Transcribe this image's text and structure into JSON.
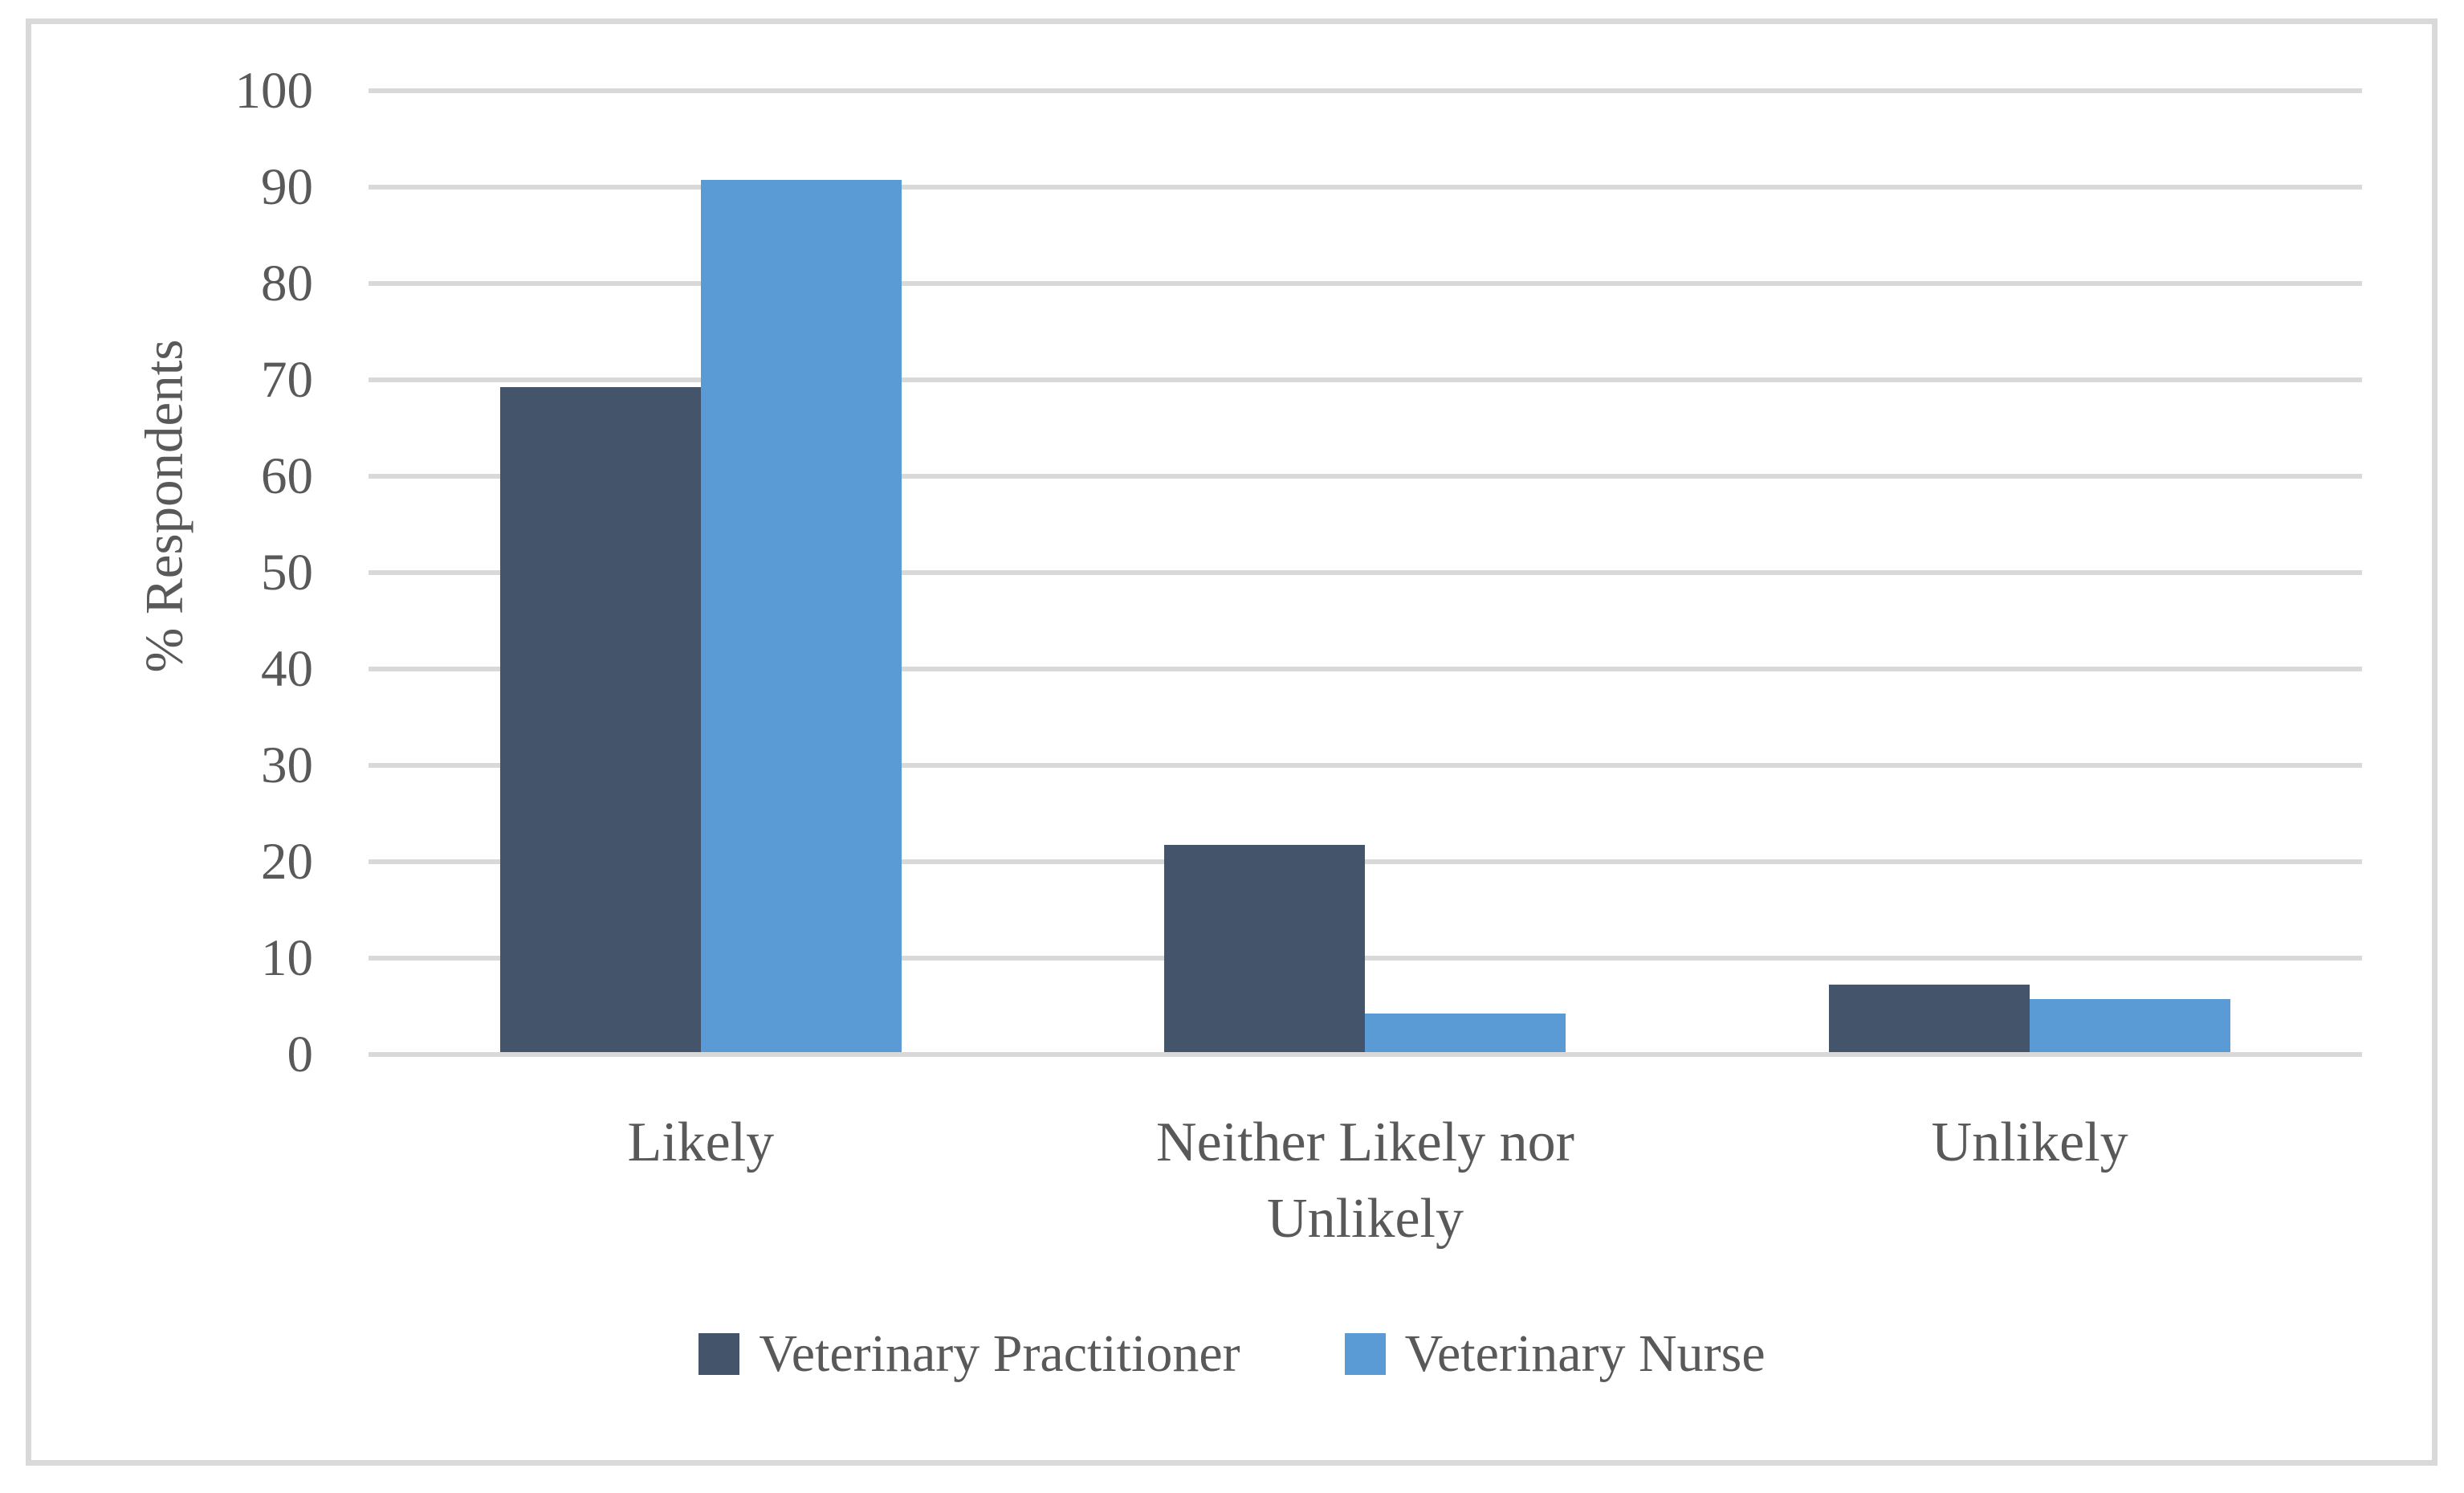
{
  "figure": {
    "background": "#FFFFFF",
    "border_color": "#D9D9D9"
  },
  "chart_data": {
    "type": "bar",
    "title": "",
    "categories": [
      "Likely",
      "Neither Likely nor Unlikely",
      "Unlikely"
    ],
    "series": [
      {
        "name": "Veterinary Practitioner",
        "color": "#44546A",
        "values": [
          69,
          21.5,
          7
        ]
      },
      {
        "name": "Veterinary Nurse",
        "color": "#5B9BD5",
        "values": [
          90.5,
          4,
          5.5
        ]
      }
    ],
    "xlabel": "",
    "ylabel": "% Respondents",
    "ylim": [
      0,
      100
    ],
    "ytick_step": 10,
    "ytick_labels": [
      "0",
      "10",
      "20",
      "30",
      "40",
      "50",
      "60",
      "70",
      "80",
      "90",
      "100"
    ],
    "grid": "horizontal",
    "gridline_color": "#D9D9D9",
    "axis_line_color": "#D9D9D9",
    "text_color": "#595959",
    "legend_position": "bottom"
  }
}
